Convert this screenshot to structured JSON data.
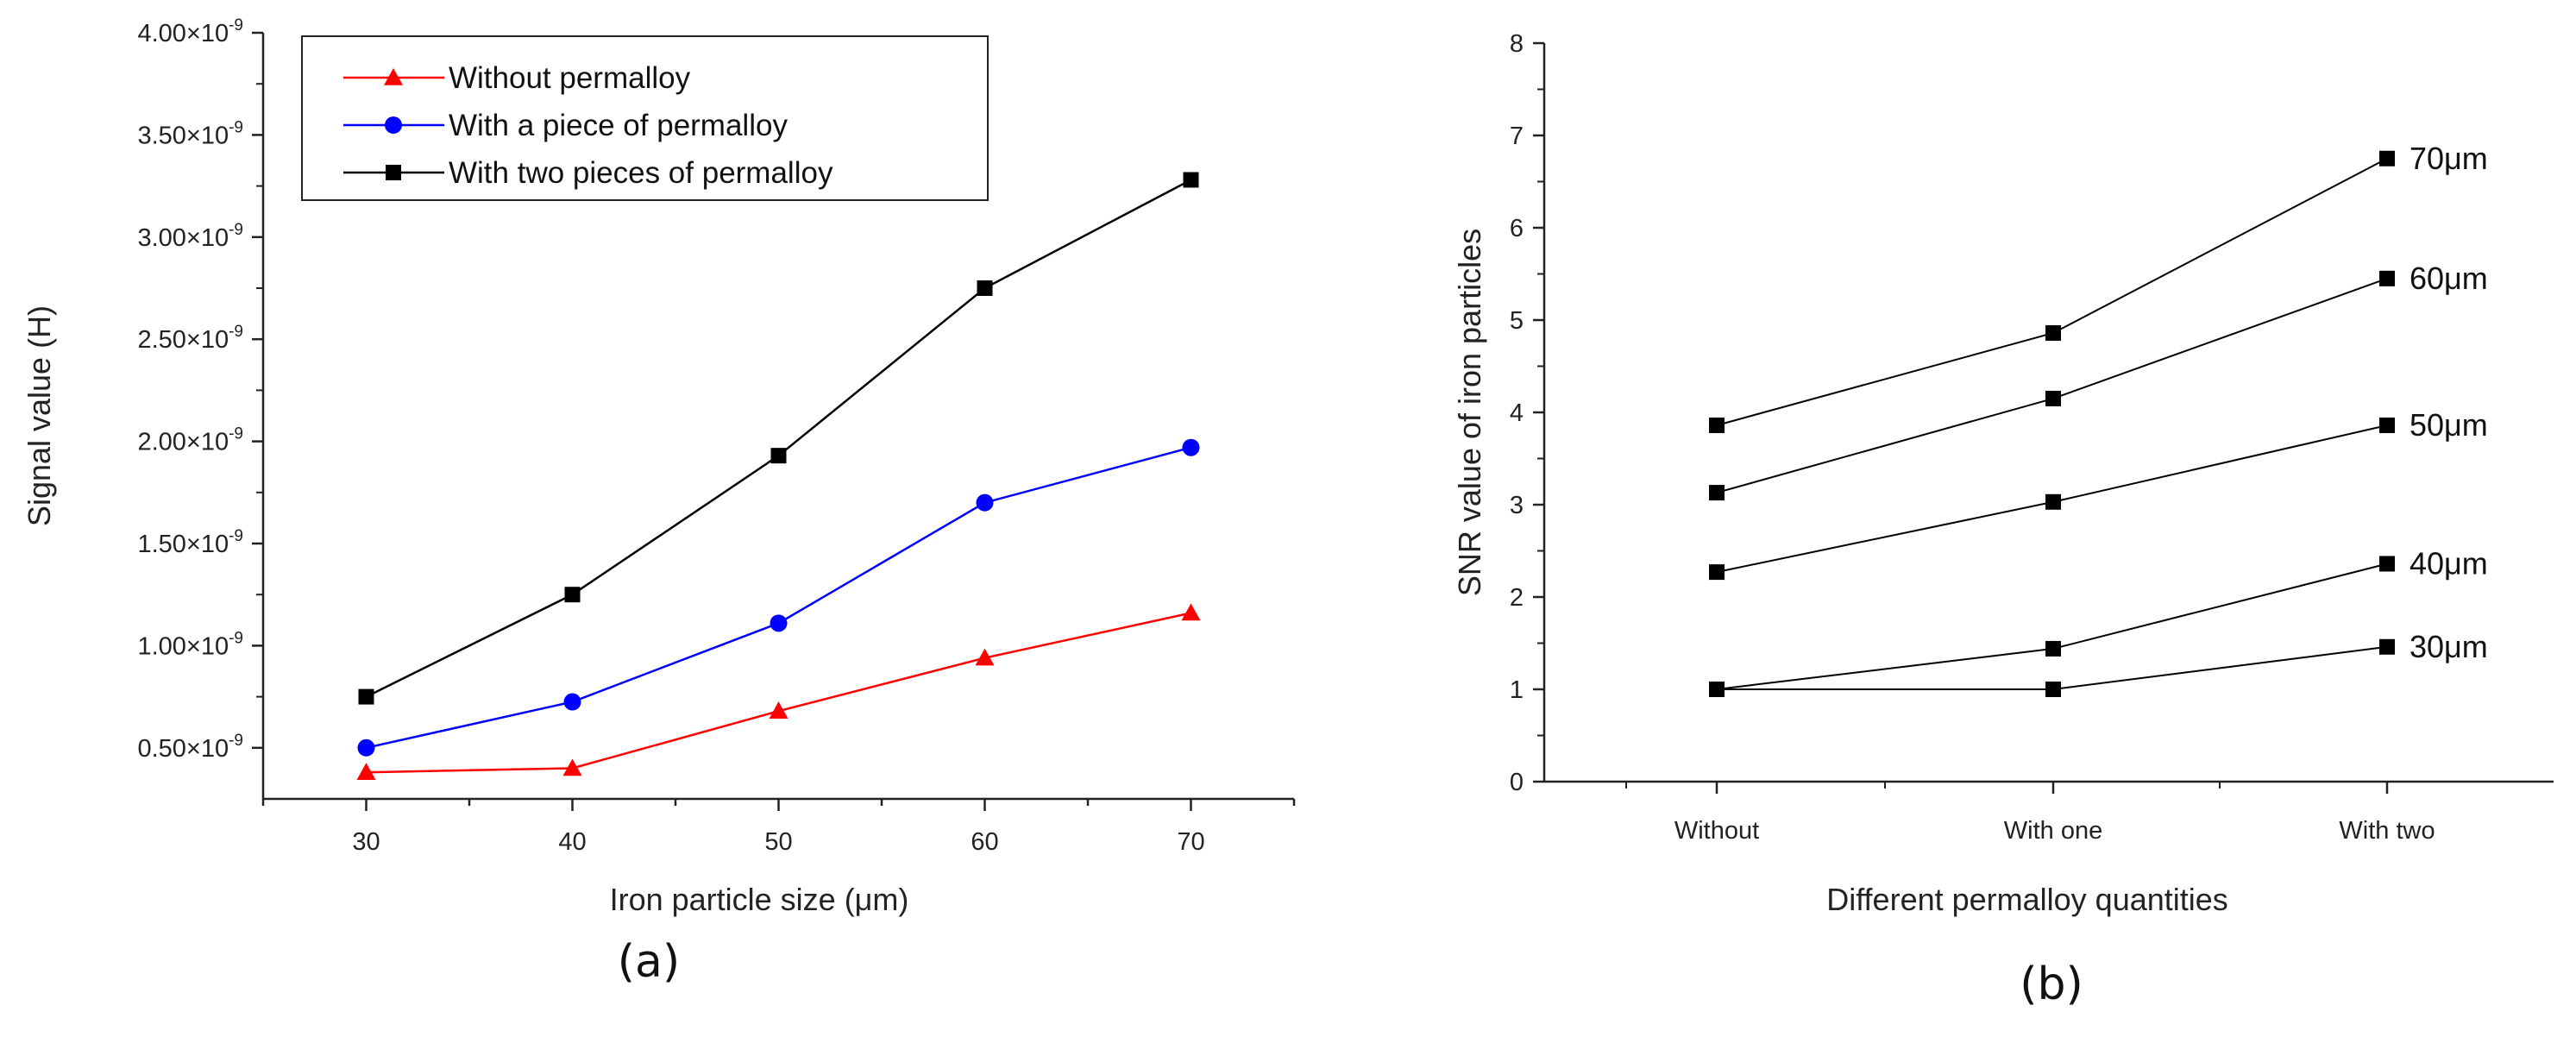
{
  "chart_data": [
    {
      "type": "line",
      "panel_label": "(a)",
      "xlabel": "Iron particle size (μm)",
      "ylabel": "Signal value (H)",
      "x": [
        30,
        40,
        50,
        60,
        70
      ],
      "xlim": [
        25,
        75
      ],
      "ylim": [
        2.5e-10,
        4e-09
      ],
      "xticks": [
        "30",
        "40",
        "50",
        "60",
        "70"
      ],
      "yticks": [
        {
          "value": 5e-10,
          "mantissa": "0.50×10",
          "exp": "-9"
        },
        {
          "value": 1e-09,
          "mantissa": "1.00×10",
          "exp": "-9"
        },
        {
          "value": 1.5e-09,
          "mantissa": "1.50×10",
          "exp": "-9"
        },
        {
          "value": 2e-09,
          "mantissa": "2.00×10",
          "exp": "-9"
        },
        {
          "value": 2.5e-09,
          "mantissa": "2.50×10",
          "exp": "-9"
        },
        {
          "value": 3e-09,
          "mantissa": "3.00×10",
          "exp": "-9"
        },
        {
          "value": 3.5e-09,
          "mantissa": "3.50×10",
          "exp": "-9"
        },
        {
          "value": 4e-09,
          "mantissa": "4.00×10",
          "exp": "-9"
        }
      ],
      "legend_position": "top-left",
      "series": [
        {
          "name": "Without permalloy",
          "color": "#ff0000",
          "marker": "triangle",
          "values": [
            3.8e-10,
            4e-10,
            6.8e-10,
            9.4e-10,
            1.16e-09
          ]
        },
        {
          "name": "With a piece of permalloy",
          "color": "#0000ff",
          "marker": "circle",
          "values": [
            5e-10,
            7.25e-10,
            1.11e-09,
            1.7e-09,
            1.97e-09
          ]
        },
        {
          "name": "With two pieces of permalloy",
          "color": "#000000",
          "marker": "square",
          "values": [
            7.5e-10,
            1.25e-09,
            1.93e-09,
            2.75e-09,
            3.28e-09
          ]
        }
      ]
    },
    {
      "type": "line",
      "panel_label": "(b)",
      "xlabel": "Different permalloy quantities",
      "ylabel": "SNR value of iron particles",
      "categories": [
        "Without",
        "With one",
        "With two"
      ],
      "ylim": [
        0,
        8
      ],
      "yticks": [
        "0",
        "1",
        "2",
        "3",
        "4",
        "5",
        "6",
        "7",
        "8"
      ],
      "series": [
        {
          "name": "70μm",
          "color": "#000000",
          "marker": "square",
          "values": [
            3.86,
            4.86,
            6.75
          ]
        },
        {
          "name": "60μm",
          "color": "#000000",
          "marker": "square",
          "values": [
            3.13,
            4.15,
            5.45
          ]
        },
        {
          "name": "50μm",
          "color": "#000000",
          "marker": "square",
          "values": [
            2.27,
            3.03,
            3.86
          ]
        },
        {
          "name": "40μm",
          "color": "#000000",
          "marker": "square",
          "values": [
            1.0,
            1.44,
            2.36
          ]
        },
        {
          "name": "30μm",
          "color": "#000000",
          "marker": "square",
          "values": [
            1.0,
            1.0,
            1.46
          ]
        }
      ]
    }
  ]
}
